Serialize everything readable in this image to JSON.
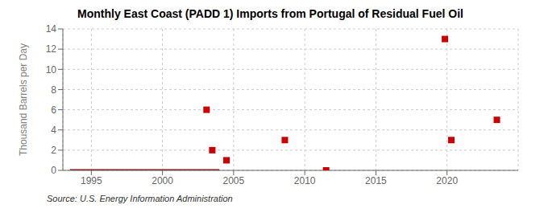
{
  "chart_data": {
    "type": "scatter",
    "title": "Monthly East Coast (PADD 1) Imports from Portugal of Residual Fuel Oil",
    "y_label": "Thousand Barrels per Day",
    "annotation": "Source: U.S. Energy Information Administration",
    "xlim": [
      1993.0,
      2025.0
    ],
    "ylim": [
      0,
      14
    ],
    "xticks": [
      1995,
      2000,
      2005,
      2010,
      2015,
      2020
    ],
    "yticks": [
      0,
      2,
      4,
      6,
      8,
      10,
      12,
      14
    ],
    "grid": true,
    "series": [
      {
        "type": "line",
        "color": "#8b0000",
        "x": [
          1993.5,
          2004.0
        ],
        "values": [
          0,
          0
        ]
      },
      {
        "type": "scatter",
        "color": "#cc0000",
        "marker": "square",
        "x": [
          2011.5,
          2003.1,
          2003.5,
          2004.5,
          2008.6,
          2019.85,
          2020.3,
          2023.5
        ],
        "values": [
          0,
          6.0,
          2.0,
          1.0,
          3.0,
          13.0,
          3.0,
          5.0
        ]
      }
    ]
  }
}
